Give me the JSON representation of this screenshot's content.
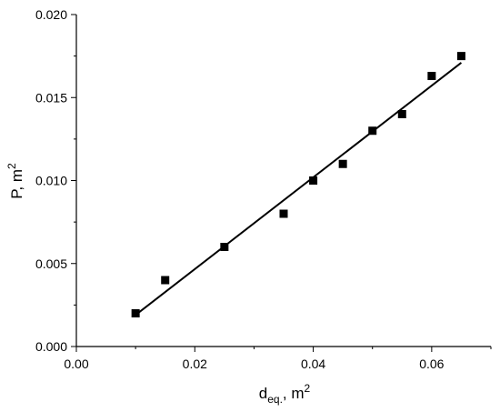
{
  "chart_data": {
    "type": "scatter",
    "title": "",
    "xlabel": {
      "base": "d",
      "subscript": "eq.",
      "suffix": ", m",
      "sup": "2"
    },
    "ylabel": {
      "base": "P, m",
      "sup": "2"
    },
    "xlim": [
      0.0,
      0.07
    ],
    "ylim": [
      0.0,
      0.02
    ],
    "x_ticks": [
      0.0,
      0.02,
      0.04,
      0.06
    ],
    "x_tick_labels": [
      "0.00",
      "0.02",
      "0.04",
      "0.06"
    ],
    "y_ticks": [
      0.0,
      0.005,
      0.01,
      0.015,
      0.02
    ],
    "y_tick_labels": [
      "0.000",
      "0.005",
      "0.010",
      "0.015",
      "0.020"
    ],
    "grid": false,
    "legend": "none",
    "series": [
      {
        "marker": "square",
        "color": "#000000",
        "x": [
          0.01,
          0.015,
          0.025,
          0.035,
          0.04,
          0.045,
          0.05,
          0.055,
          0.06,
          0.065
        ],
        "y": [
          0.002,
          0.004,
          0.006,
          0.008,
          0.01,
          0.011,
          0.013,
          0.014,
          0.0163,
          0.0175
        ]
      }
    ],
    "fit_line": {
      "x": [
        0.01,
        0.065
      ],
      "y": [
        0.0019,
        0.0171
      ],
      "color": "#000000"
    }
  }
}
